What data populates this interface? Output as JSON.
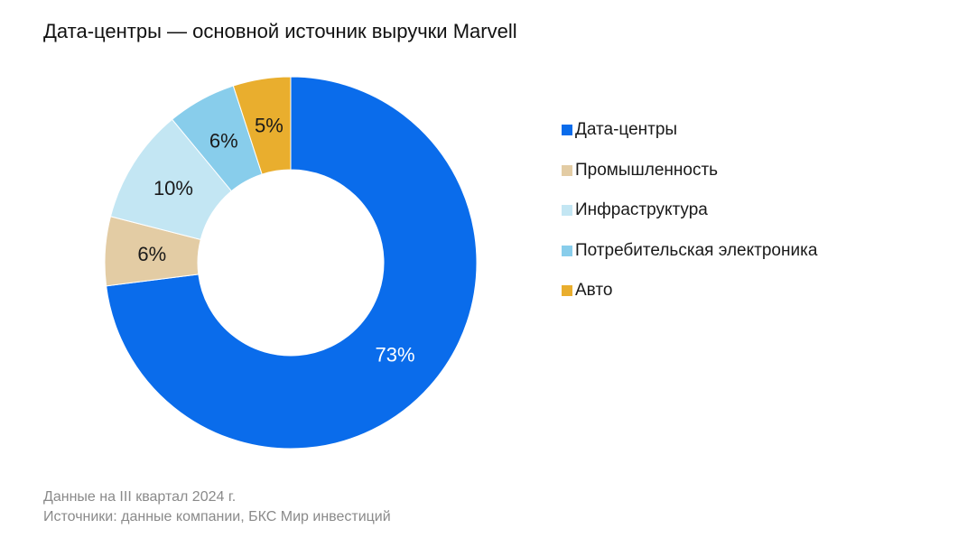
{
  "title": "Дата-центры — основной источник выручки Marvell",
  "chart_data": {
    "type": "pie",
    "title": "Дата-центры — основной источник выручки Marvell",
    "categories": [
      "Дата-центры",
      "Промышленность",
      "Инфраструктура",
      "Потребительская электроника",
      "Авто"
    ],
    "values": [
      73,
      6,
      10,
      6,
      5
    ],
    "labels": [
      "73%",
      "6%",
      "10%",
      "6%",
      "5%"
    ],
    "colors": [
      "#0A6CEB",
      "#E3CCA4",
      "#C3E6F3",
      "#88CDEB",
      "#E9AE2E"
    ],
    "label_colors": [
      "#ffffff",
      "#1a1a1a",
      "#1a1a1a",
      "#1a1a1a",
      "#1a1a1a"
    ],
    "donut": true,
    "legend_position": "right"
  },
  "legend": [
    {
      "label": "Дата-центры",
      "color": "#0A6CEB"
    },
    {
      "label": "Промышленность",
      "color": "#E3CCA4"
    },
    {
      "label": "Инфраструктура",
      "color": "#C3E6F3"
    },
    {
      "label": "Потребительская электроника",
      "color": "#88CDEB"
    },
    {
      "label": "Авто",
      "color": "#E9AE2E"
    }
  ],
  "footnote": {
    "line1": "Данные на III квартал 2024 г.",
    "line2": "Источники: данные компании, БКС Мир инвестиций"
  }
}
